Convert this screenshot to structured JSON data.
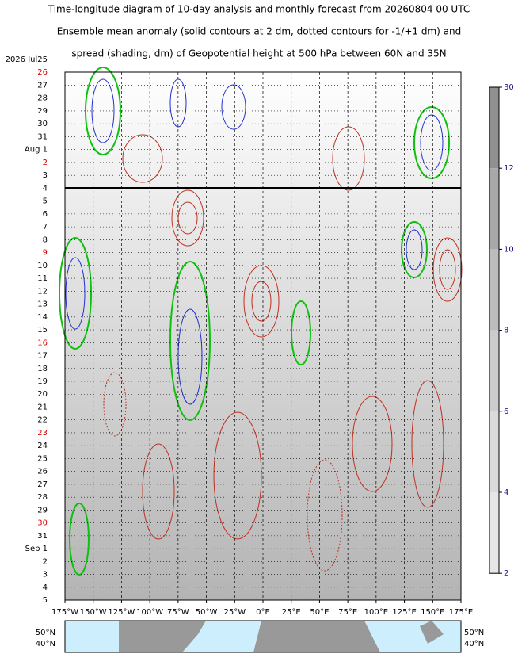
{
  "chart_data": {
    "type": "hovmoller",
    "title": [
      "Time-longitude diagram of 10-day analysis and monthly forecast from 20260804 00 UTC",
      "Ensemble mean anomaly (solid contours at 2 dm, dotted contours for -1/+1 dm) and",
      "spread (shading, dm) of Geopotential height at 500 hPa between 60N and 35N"
    ],
    "x_labels": [
      "175°W",
      "150°W",
      "125°W",
      "100°W",
      "75°W",
      "50°W",
      "25°W",
      "0°E",
      "25°E",
      "50°E",
      "75°E",
      "100°E",
      "125°E",
      "150°E",
      "175°E"
    ],
    "y_labels": [
      {
        "label": "2026  Jul25",
        "color": "#000"
      },
      {
        "label": "26",
        "color": "#d00000"
      },
      {
        "label": "27",
        "color": "#000"
      },
      {
        "label": "28",
        "color": "#000"
      },
      {
        "label": "29",
        "color": "#000"
      },
      {
        "label": "30",
        "color": "#000"
      },
      {
        "label": "31",
        "color": "#000"
      },
      {
        "label": "Aug  1",
        "color": "#000"
      },
      {
        "label": "2",
        "color": "#d00000"
      },
      {
        "label": "3",
        "color": "#000"
      },
      {
        "label": "4",
        "color": "#000"
      },
      {
        "label": "5",
        "color": "#000"
      },
      {
        "label": "6",
        "color": "#000"
      },
      {
        "label": "7",
        "color": "#000"
      },
      {
        "label": "8",
        "color": "#000"
      },
      {
        "label": "9",
        "color": "#d00000"
      },
      {
        "label": "10",
        "color": "#000"
      },
      {
        "label": "11",
        "color": "#000"
      },
      {
        "label": "12",
        "color": "#000"
      },
      {
        "label": "13",
        "color": "#000"
      },
      {
        "label": "14",
        "color": "#000"
      },
      {
        "label": "15",
        "color": "#000"
      },
      {
        "label": "16",
        "color": "#d00000"
      },
      {
        "label": "17",
        "color": "#000"
      },
      {
        "label": "18",
        "color": "#000"
      },
      {
        "label": "19",
        "color": "#000"
      },
      {
        "label": "20",
        "color": "#000"
      },
      {
        "label": "21",
        "color": "#000"
      },
      {
        "label": "22",
        "color": "#000"
      },
      {
        "label": "23",
        "color": "#d00000"
      },
      {
        "label": "24",
        "color": "#000"
      },
      {
        "label": "25",
        "color": "#000"
      },
      {
        "label": "26",
        "color": "#000"
      },
      {
        "label": "27",
        "color": "#000"
      },
      {
        "label": "28",
        "color": "#000"
      },
      {
        "label": "29",
        "color": "#000"
      },
      {
        "label": "30",
        "color": "#d00000"
      },
      {
        "label": "31",
        "color": "#000"
      },
      {
        "label": "Sep  1",
        "color": "#000"
      },
      {
        "label": "2",
        "color": "#000"
      },
      {
        "label": "3",
        "color": "#000"
      },
      {
        "label": "4",
        "color": "#000"
      },
      {
        "label": "5",
        "color": "#000"
      }
    ],
    "colorbar_ticks": [
      30,
      12,
      10,
      8,
      6,
      4,
      2
    ],
    "colorbar_colors": [
      "#909090",
      "#a8a8a8",
      "#bcbcbc",
      "#cccccc",
      "#dadada",
      "#e6e6e6"
    ],
    "map_labels": [
      "50°N",
      "40°N"
    ]
  }
}
